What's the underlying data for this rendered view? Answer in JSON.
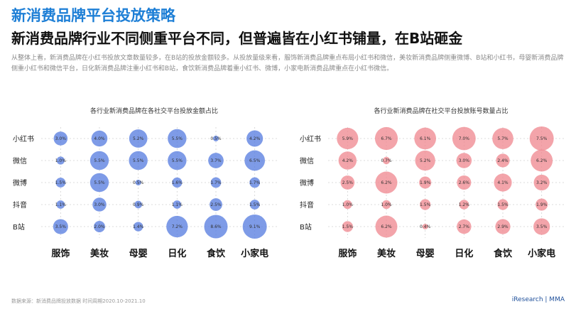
{
  "header": {
    "title": "新消费品牌平台投放策略",
    "subtitle": "新消费品牌行业不同侧重平台不同，但普遍皆在小红书铺量，在B站砸金",
    "description": "从整体上看，新消费品牌在小红书投放文章数量较多，在B站的投放金额较多。从投放量级来看，服饰新消费品牌重点布局小红书和微信，美妆新消费品牌侧重微博、B站和小红书，母婴新消费品牌侧重小红书和微信平台，日化新消费品牌注重小红书和B站，食饮新消费品牌着重小红书、微博，小家电新消费品牌重点在小红书微信。"
  },
  "footer": {
    "source": "数据来源：新消费品牌投放数据 时间周期2020.10-2021.10",
    "brand": "iResearch | MMA"
  },
  "colors": {
    "left": "#5a7fe0",
    "right": "#ef8a92"
  },
  "chart_data": [
    {
      "type": "bubble",
      "title": "各行业新消费品牌在各社交平台投放金额占比",
      "categories": [
        "服饰",
        "美妆",
        "母婴",
        "日化",
        "食饮",
        "小家电"
      ],
      "platforms": [
        "小红书",
        "微信",
        "微博",
        "抖音",
        "B站"
      ],
      "series": [
        {
          "name": "小红书",
          "values": [
            3.0,
            4.0,
            5.2,
            5.5,
            0.5,
            4.2
          ]
        },
        {
          "name": "微信",
          "values": [
            1.0,
            5.5,
            5.5,
            5.5,
            3.7,
            6.5
          ]
        },
        {
          "name": "微博",
          "values": [
            1.5,
            5.5,
            0.5,
            1.6,
            1.7,
            1.7
          ]
        },
        {
          "name": "抖音",
          "values": [
            1.1,
            3.0,
            0.9,
            1.1,
            2.5,
            1.5
          ]
        },
        {
          "name": "B站",
          "values": [
            3.5,
            2.0,
            1.4,
            7.2,
            8.6,
            9.1
          ]
        }
      ],
      "value_labels": [
        [
          "3.0%",
          "4.0%",
          "5.2%",
          "5.5%",
          "0.5%",
          "4.2%"
        ],
        [
          "1.0%",
          "5.5%",
          "5.5%",
          "5.5%",
          "3.7%",
          "6.5%"
        ],
        [
          "1.5%",
          "5.5%",
          "0.5%",
          "1.6%",
          "1.7%",
          "1.7%"
        ],
        [
          "1.1%",
          "3.0%",
          "0.9%",
          "1.1%",
          "2.5%",
          "1.5%"
        ],
        [
          "3.5%",
          "2.0%",
          "1.4%",
          "7.2%",
          "8.6%",
          "9.1%"
        ]
      ]
    },
    {
      "type": "bubble",
      "title": "各行业新消费品牌在社交平台投放账号数量占比",
      "categories": [
        "服饰",
        "美妆",
        "母婴",
        "日化",
        "食饮",
        "小家电"
      ],
      "platforms": [
        "小红书",
        "微信",
        "微博",
        "抖音",
        "B站"
      ],
      "series": [
        {
          "name": "小红书",
          "values": [
            5.9,
            6.7,
            6.1,
            7.0,
            5.7,
            7.5
          ]
        },
        {
          "name": "微信",
          "values": [
            4.2,
            0.7,
            5.2,
            3.0,
            2.4,
            6.2
          ]
        },
        {
          "name": "微博",
          "values": [
            2.5,
            6.2,
            1.9,
            2.6,
            4.1,
            3.2
          ]
        },
        {
          "name": "抖音",
          "values": [
            1.0,
            1.0,
            1.5,
            1.2,
            1.5,
            1.9
          ]
        },
        {
          "name": "B站",
          "values": [
            1.5,
            6.2,
            0.4,
            2.7,
            2.9,
            3.5
          ]
        }
      ],
      "value_labels": [
        [
          "5.9%",
          "6.7%",
          "6.1%",
          "7.0%",
          "5.7%",
          "7.5%"
        ],
        [
          "4.2%",
          "0.7%",
          "5.2%",
          "3.0%",
          "2.4%",
          "6.2%"
        ],
        [
          "2.5%",
          "6.2%",
          "1.9%",
          "2.6%",
          "4.1%",
          "3.2%"
        ],
        [
          "1.0%",
          "1.0%",
          "1.5%",
          "1.2%",
          "1.5%",
          "1.9%"
        ],
        [
          "1.5%",
          "6.2%",
          "0.4%",
          "2.7%",
          "2.9%",
          "3.5%"
        ]
      ]
    }
  ]
}
